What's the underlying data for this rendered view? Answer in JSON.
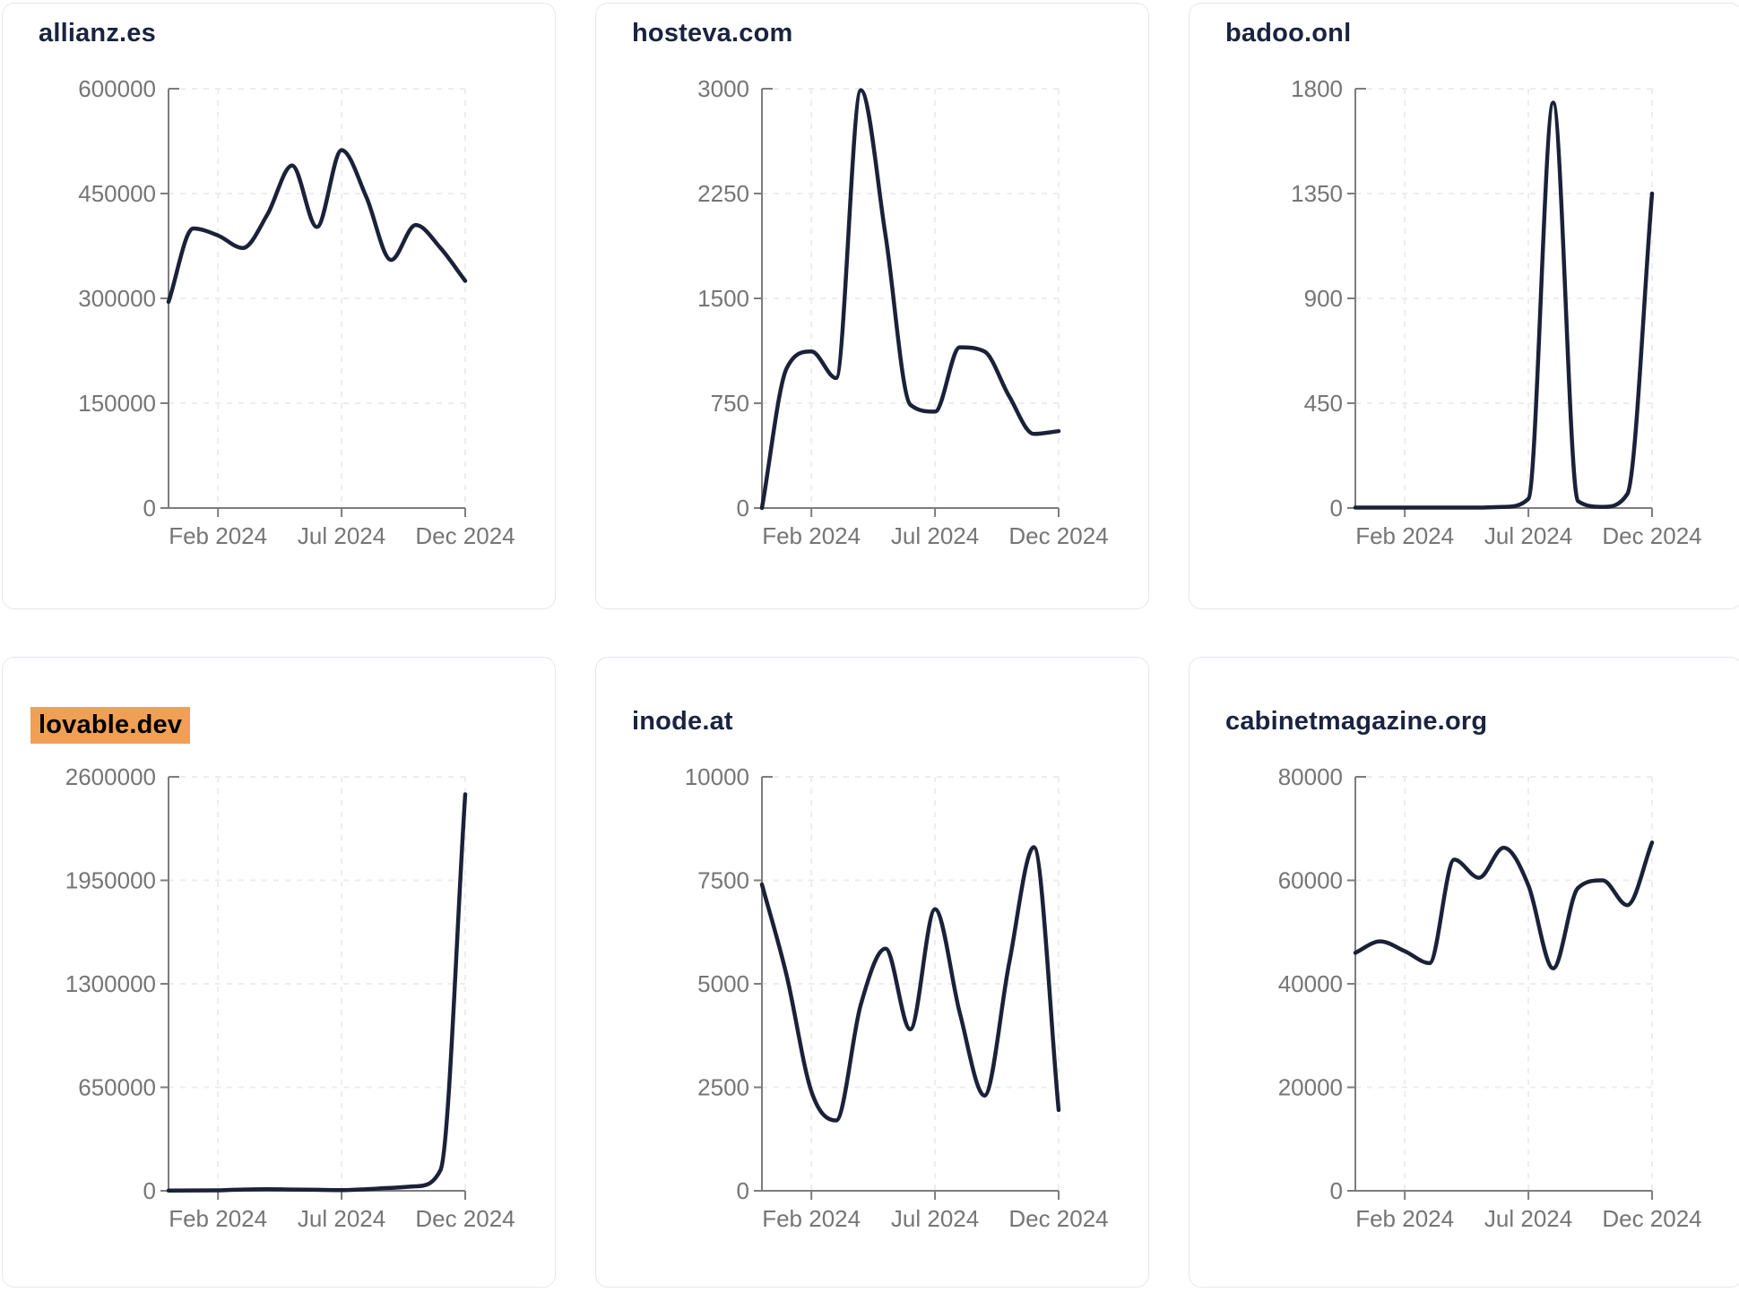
{
  "page": {
    "background": "#ffffff",
    "description_visible_text_only": true
  },
  "colors": {
    "line": "#1b2138",
    "title": "#1a2340",
    "axis": "#7d7d7d",
    "tick_label": "#757575",
    "grid": "#ececf1",
    "card_border": "#e6e6ef",
    "highlight_bg": "#f0a055",
    "highlight_text": "#000000"
  },
  "chart_data": [
    {
      "type": "line",
      "title": "allianz.es",
      "highlighted": false,
      "x": [
        "Dec 2023",
        "Jan 2024",
        "Feb 2024",
        "Mar 2024",
        "Apr 2024",
        "May 2024",
        "Jun 2024",
        "Jul 2024",
        "Aug 2024",
        "Sep 2024",
        "Oct 2024",
        "Nov 2024",
        "Dec 2024"
      ],
      "values": [
        295000,
        400000,
        390000,
        372000,
        420000,
        490000,
        402000,
        512000,
        445000,
        355000,
        405000,
        372000,
        325000
      ],
      "y_ticks": [
        0,
        150000,
        300000,
        450000,
        600000
      ],
      "ylim": [
        0,
        600000
      ],
      "x_tick_labels": [
        "Feb 2024",
        "Jul 2024",
        "Dec 2024"
      ],
      "x_tick_indices": [
        2,
        7,
        12
      ],
      "grid": true,
      "legend": "none"
    },
    {
      "type": "line",
      "title": "hosteva.com",
      "highlighted": false,
      "x": [
        "Dec 2023",
        "Jan 2024",
        "Feb 2024",
        "Mar 2024",
        "Apr 2024",
        "May 2024",
        "Jun 2024",
        "Jul 2024",
        "Aug 2024",
        "Sep 2024",
        "Oct 2024",
        "Nov 2024",
        "Dec 2024"
      ],
      "values": [
        0,
        1000,
        1120,
        930,
        2990,
        1950,
        740,
        690,
        1150,
        1120,
        800,
        530,
        550
      ],
      "y_ticks": [
        0,
        750,
        1500,
        2250,
        3000
      ],
      "ylim": [
        0,
        3000
      ],
      "x_tick_labels": [
        "Feb 2024",
        "Jul 2024",
        "Dec 2024"
      ],
      "x_tick_indices": [
        2,
        7,
        12
      ],
      "grid": true,
      "legend": "none"
    },
    {
      "type": "line",
      "title": "badoo.onl",
      "highlighted": false,
      "x": [
        "Dec 2023",
        "Jan 2024",
        "Feb 2024",
        "Mar 2024",
        "Apr 2024",
        "May 2024",
        "Jun 2024",
        "Jul 2024",
        "Aug 2024",
        "Sep 2024",
        "Oct 2024",
        "Nov 2024",
        "Dec 2024"
      ],
      "values": [
        2,
        2,
        2,
        2,
        2,
        2,
        5,
        40,
        1740,
        30,
        5,
        60,
        1350
      ],
      "y_ticks": [
        0,
        450,
        900,
        1350,
        1800
      ],
      "ylim": [
        0,
        1800
      ],
      "x_tick_labels": [
        "Feb 2024",
        "Jul 2024",
        "Dec 2024"
      ],
      "x_tick_indices": [
        2,
        7,
        12
      ],
      "grid": true,
      "legend": "none"
    },
    {
      "type": "line",
      "title": "lovable.dev",
      "highlighted": true,
      "x": [
        "Dec 2023",
        "Jan 2024",
        "Feb 2024",
        "Mar 2024",
        "Apr 2024",
        "May 2024",
        "Jun 2024",
        "Jul 2024",
        "Aug 2024",
        "Sep 2024",
        "Oct 2024",
        "Nov 2024",
        "Dec 2024"
      ],
      "values": [
        1000,
        2000,
        3000,
        8000,
        10000,
        8000,
        6000,
        4000,
        10000,
        18000,
        28000,
        130000,
        2490000
      ],
      "y_ticks": [
        0,
        650000,
        1300000,
        1950000,
        2600000
      ],
      "ylim": [
        0,
        2600000
      ],
      "x_tick_labels": [
        "Feb 2024",
        "Jul 2024",
        "Dec 2024"
      ],
      "x_tick_indices": [
        2,
        7,
        12
      ],
      "grid": true,
      "legend": "none"
    },
    {
      "type": "line",
      "title": "inode.at",
      "highlighted": false,
      "x": [
        "Dec 2023",
        "Jan 2024",
        "Feb 2024",
        "Mar 2024",
        "Apr 2024",
        "May 2024",
        "Jun 2024",
        "Jul 2024",
        "Aug 2024",
        "Sep 2024",
        "Oct 2024",
        "Nov 2024",
        "Dec 2024"
      ],
      "values": [
        7400,
        5200,
        2400,
        1700,
        4500,
        5850,
        3900,
        6800,
        4300,
        2300,
        5500,
        8300,
        1950
      ],
      "y_ticks": [
        0,
        2500,
        5000,
        7500,
        10000
      ],
      "ylim": [
        0,
        10000
      ],
      "x_tick_labels": [
        "Feb 2024",
        "Jul 2024",
        "Dec 2024"
      ],
      "x_tick_indices": [
        2,
        7,
        12
      ],
      "grid": true,
      "legend": "none"
    },
    {
      "type": "line",
      "title": "cabinetmagazine.org",
      "highlighted": false,
      "x": [
        "Dec 2023",
        "Jan 2024",
        "Feb 2024",
        "Mar 2024",
        "Apr 2024",
        "May 2024",
        "Jun 2024",
        "Jul 2024",
        "Aug 2024",
        "Sep 2024",
        "Oct 2024",
        "Nov 2024",
        "Dec 2024"
      ],
      "values": [
        46000,
        48200,
        46300,
        44000,
        64000,
        60500,
        66300,
        59000,
        43000,
        58500,
        60000,
        55200,
        67300
      ],
      "y_ticks": [
        0,
        20000,
        40000,
        60000,
        80000
      ],
      "ylim": [
        0,
        80000
      ],
      "x_tick_labels": [
        "Feb 2024",
        "Jul 2024",
        "Dec 2024"
      ],
      "x_tick_indices": [
        2,
        7,
        12
      ],
      "grid": true,
      "legend": "none"
    }
  ]
}
